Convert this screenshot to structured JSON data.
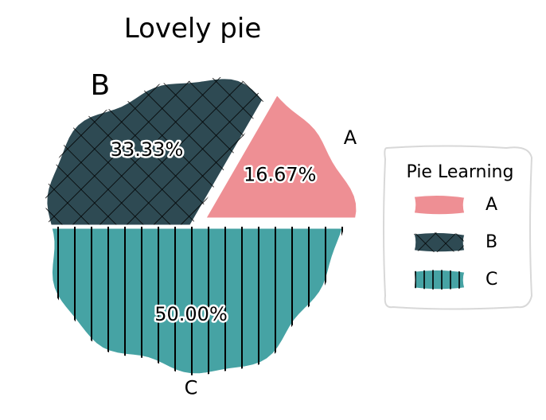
{
  "chart_data": {
    "type": "pie",
    "title": "Lovely pie",
    "categories": [
      "A",
      "B",
      "C"
    ],
    "values": [
      16.67,
      33.33,
      50.0
    ],
    "percent_labels": [
      "16.67%",
      "33.33%",
      "50.00%"
    ],
    "colors": [
      "#ee8f94",
      "#2e4a53",
      "#46a3a4"
    ],
    "hatches": [
      "none",
      "crosshatch",
      "vertical"
    ],
    "explode": [
      "A"
    ],
    "legend": {
      "title": "Pie Learning",
      "placement": "right"
    },
    "style": "hand-drawn"
  }
}
